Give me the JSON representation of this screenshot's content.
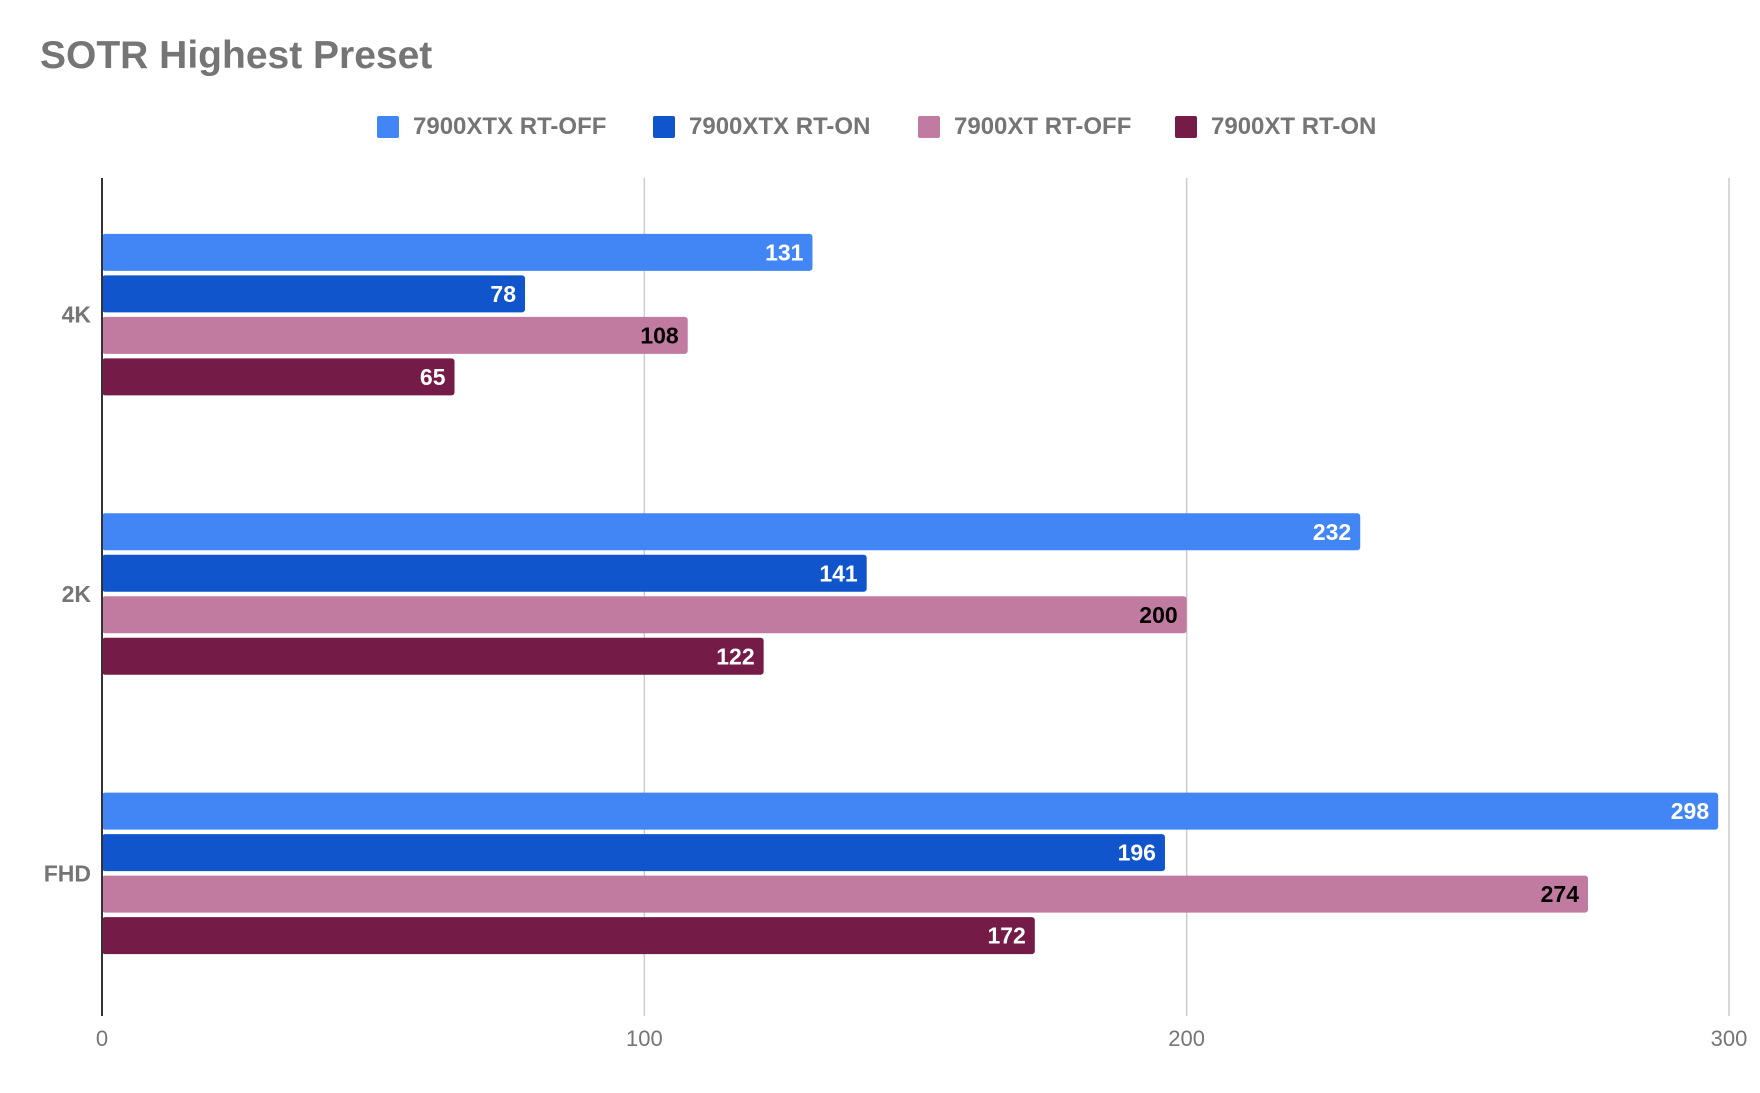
{
  "chart_data": {
    "type": "bar",
    "orientation": "horizontal",
    "title": "SOTR Highest Preset",
    "categories": [
      "4K",
      "2K",
      "FHD"
    ],
    "series": [
      {
        "name": "7900XTX RT-OFF",
        "color": "#4285f4",
        "label_color": "#ffffff",
        "values": [
          131,
          232,
          298
        ]
      },
      {
        "name": "7900XTX RT-ON",
        "color": "#1155cc",
        "label_color": "#ffffff",
        "values": [
          78,
          141,
          196
        ]
      },
      {
        "name": "7900XT RT-OFF",
        "color": "#c27ba0",
        "label_color": "#000000",
        "values": [
          108,
          200,
          274
        ]
      },
      {
        "name": "7900XT RT-ON",
        "color": "#741b47",
        "label_color": "#ffffff",
        "values": [
          65,
          122,
          172
        ]
      }
    ],
    "xlim": [
      0,
      300
    ],
    "xticks": [
      0,
      100,
      200,
      300
    ],
    "xlabel": "",
    "ylabel": "",
    "grid": "vertical",
    "legend_position": "top",
    "data_labels": true
  }
}
